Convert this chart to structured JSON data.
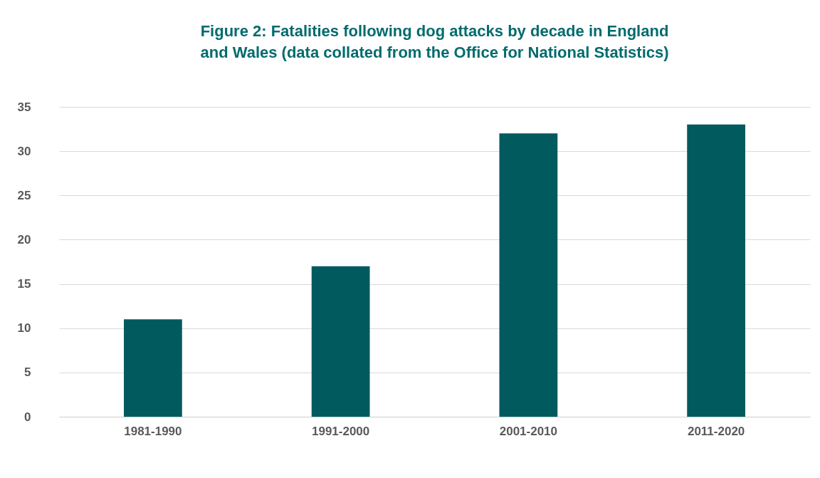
{
  "chart_data": {
    "type": "bar",
    "title": "Figure 2: Fatalities following dog attacks by decade in England and Wales (data collated from the Office for National Statistics)",
    "categories": [
      "1981-1990",
      "1991-2000",
      "2001-2010",
      "2011-2020"
    ],
    "values": [
      11,
      17,
      32,
      33
    ],
    "color": "#005a5e",
    "ylim": [
      0,
      35
    ],
    "yticks": [
      0,
      5,
      10,
      15,
      20,
      25,
      30,
      35
    ],
    "grid": true
  }
}
